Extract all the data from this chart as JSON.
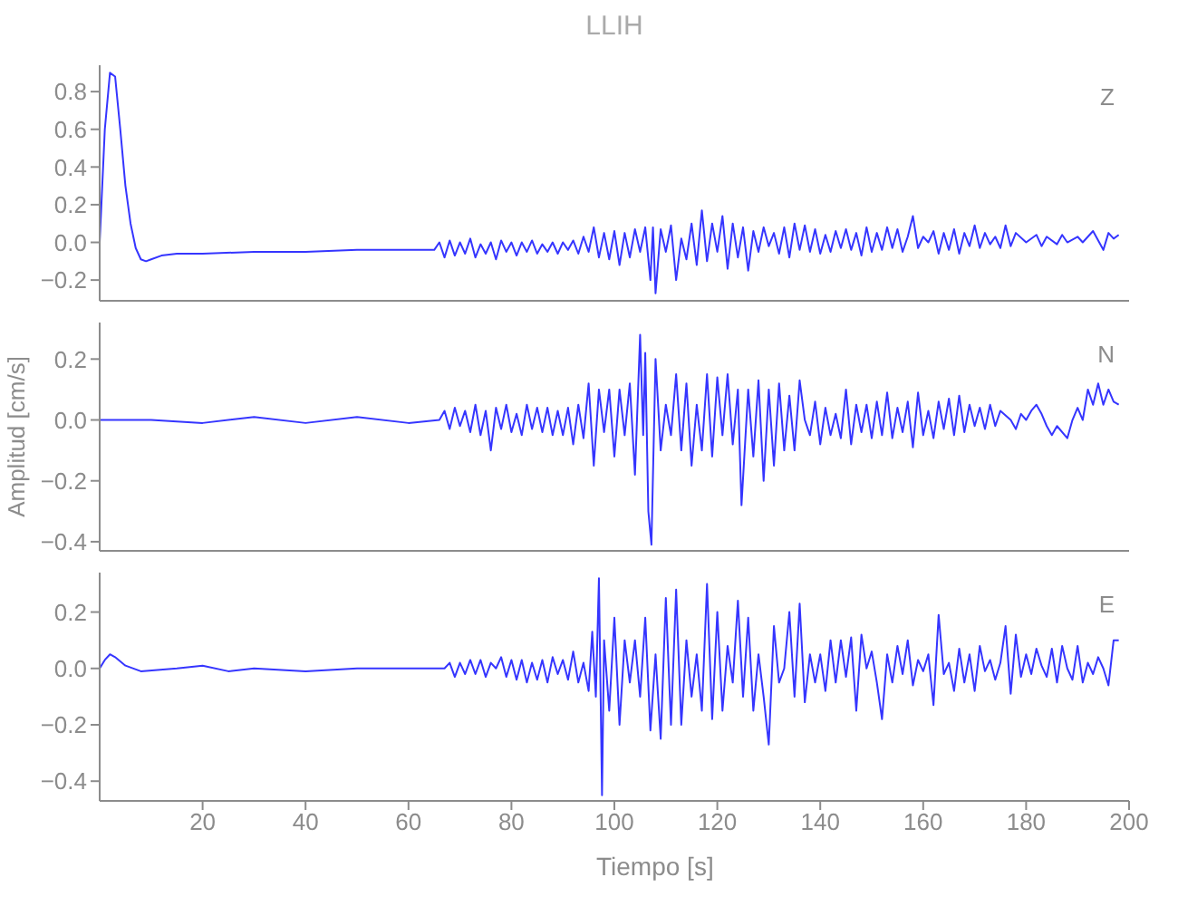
{
  "chart_data": [
    {
      "type": "line",
      "title": "LLIH",
      "annotations": [
        "Z"
      ],
      "xlim": [
        0,
        200
      ],
      "ylim": [
        -0.31,
        0.94
      ],
      "tick_labels": "y",
      "xticks": [
        20,
        40,
        60,
        80,
        100,
        120,
        140,
        160,
        180,
        200
      ],
      "yticks": [
        {
          "value": -0.2,
          "label": "−0.2"
        },
        {
          "value": 0,
          "label": "0.0"
        },
        0.2,
        0.4,
        0.6,
        0.8
      ],
      "x": [
        0,
        1,
        2,
        3,
        4,
        5,
        6,
        7,
        8,
        9,
        10,
        12,
        15,
        20,
        30,
        40,
        50,
        60,
        65,
        66,
        67,
        68,
        69,
        70,
        71,
        72,
        73,
        74,
        75,
        76,
        77,
        78,
        79,
        80,
        81,
        82,
        83,
        84,
        85,
        86,
        87,
        88,
        89,
        90,
        91,
        92,
        93,
        94,
        95,
        96,
        97,
        98,
        99,
        100,
        101,
        102,
        103,
        104,
        105,
        106,
        107,
        107.5,
        108,
        109,
        110,
        111,
        112,
        113,
        114,
        115,
        116,
        117,
        118,
        119,
        120,
        121,
        122,
        123,
        124,
        125,
        126,
        127,
        128,
        129,
        130,
        131,
        132,
        133,
        134,
        135,
        136,
        137,
        138,
        139,
        140,
        141,
        142,
        143,
        144,
        145,
        146,
        147,
        148,
        149,
        150,
        151,
        152,
        153,
        154,
        155,
        156,
        157,
        158,
        159,
        160,
        161,
        162,
        163,
        164,
        165,
        166,
        167,
        168,
        169,
        170,
        171,
        172,
        173,
        174,
        175,
        176,
        177,
        178,
        180,
        182,
        183,
        184,
        186,
        187,
        188,
        190,
        191,
        193,
        195,
        196,
        197,
        198
      ],
      "series": [
        {
          "color": "#3535ff",
          "values": [
            0.0,
            0.6,
            0.9,
            0.88,
            0.6,
            0.3,
            0.1,
            -0.03,
            -0.09,
            -0.1,
            -0.09,
            -0.07,
            -0.06,
            -0.06,
            -0.05,
            -0.05,
            -0.04,
            -0.04,
            -0.04,
            0.0,
            -0.08,
            0.01,
            -0.07,
            0.0,
            -0.06,
            0.02,
            -0.08,
            -0.01,
            -0.06,
            0.0,
            -0.09,
            0.01,
            -0.05,
            0.0,
            -0.07,
            0.0,
            -0.05,
            0.01,
            -0.06,
            -0.01,
            -0.05,
            0.0,
            -0.06,
            0.0,
            -0.04,
            0.01,
            -0.06,
            0.03,
            -0.05,
            0.08,
            -0.08,
            0.05,
            -0.09,
            0.06,
            -0.12,
            0.05,
            -0.08,
            0.07,
            -0.05,
            0.08,
            -0.2,
            0.08,
            -0.27,
            0.07,
            -0.05,
            0.09,
            -0.2,
            0.02,
            -0.09,
            0.1,
            -0.12,
            0.17,
            -0.1,
            0.1,
            -0.05,
            0.14,
            -0.14,
            0.1,
            -0.08,
            0.08,
            -0.15,
            0.06,
            -0.05,
            0.08,
            -0.02,
            0.05,
            -0.06,
            0.08,
            -0.08,
            0.1,
            -0.04,
            0.09,
            -0.05,
            0.07,
            -0.06,
            0.04,
            -0.05,
            0.06,
            -0.03,
            0.07,
            -0.04,
            0.05,
            -0.07,
            0.08,
            -0.05,
            0.05,
            -0.04,
            0.08,
            -0.03,
            0.07,
            -0.05,
            0.03,
            0.14,
            -0.03,
            0.03,
            0.0,
            0.06,
            -0.06,
            0.05,
            -0.04,
            0.07,
            -0.06,
            0.05,
            -0.02,
            0.09,
            -0.03,
            0.05,
            -0.01,
            0.03,
            -0.03,
            0.09,
            -0.02,
            0.05,
            0.0,
            0.04,
            -0.02,
            0.03,
            -0.01,
            0.04,
            0.0,
            0.03,
            0.0,
            0.06,
            -0.04,
            0.05,
            0.02,
            0.04
          ]
        }
      ]
    },
    {
      "type": "line",
      "ylabel": "Amplitud  [cm/s]",
      "annotations": [
        "N"
      ],
      "xlim": [
        0,
        200
      ],
      "ylim": [
        -0.43,
        0.32
      ],
      "tick_labels": "y",
      "xticks": [
        20,
        40,
        60,
        80,
        100,
        120,
        140,
        160,
        180,
        200
      ],
      "yticks": [
        {
          "value": -0.4,
          "label": "−0.4"
        },
        {
          "value": -0.2,
          "label": "−0.2"
        },
        {
          "value": 0,
          "label": "0.0"
        },
        0.2
      ],
      "x": [
        0,
        10,
        20,
        30,
        40,
        50,
        60,
        66,
        67,
        68,
        69,
        70,
        71,
        72,
        73,
        74,
        75,
        76,
        77,
        78,
        79,
        80,
        81,
        82,
        83,
        84,
        85,
        86,
        87,
        88,
        89,
        90,
        91,
        92,
        93,
        94,
        95,
        96,
        97,
        98,
        99,
        100,
        101,
        102,
        103,
        104,
        105,
        105.6,
        106,
        106.6,
        107.2,
        108,
        109,
        110,
        111,
        112,
        113,
        114,
        115,
        116,
        117,
        118,
        119,
        120,
        121,
        122,
        123,
        124,
        124.7,
        126,
        127,
        128,
        129,
        130,
        131,
        132,
        133,
        134,
        135,
        136,
        137,
        138,
        139,
        140,
        141,
        142,
        143,
        144,
        145,
        146,
        147,
        148,
        149,
        150,
        151,
        152,
        153,
        154,
        155,
        156,
        157,
        158,
        159,
        160,
        161,
        162,
        163,
        164,
        165,
        166,
        167,
        168,
        169,
        170,
        171,
        172,
        173,
        174,
        175,
        177,
        178,
        179,
        180,
        181,
        182,
        183,
        184,
        185,
        186,
        188,
        189,
        190,
        191,
        192,
        193,
        194,
        195,
        196,
        197,
        198
      ],
      "series": [
        {
          "color": "#3535ff",
          "values": [
            0.0,
            0.0,
            -0.01,
            0.01,
            -0.01,
            0.01,
            -0.01,
            0.0,
            0.03,
            -0.03,
            0.04,
            -0.02,
            0.03,
            -0.04,
            0.05,
            -0.05,
            0.03,
            -0.1,
            0.04,
            -0.03,
            0.05,
            -0.04,
            0.02,
            -0.05,
            0.05,
            -0.03,
            0.04,
            -0.04,
            0.04,
            -0.05,
            0.03,
            -0.05,
            0.04,
            -0.08,
            0.05,
            -0.06,
            0.12,
            -0.15,
            0.1,
            -0.04,
            0.1,
            -0.12,
            0.1,
            -0.05,
            0.12,
            -0.18,
            0.28,
            -0.05,
            0.22,
            -0.3,
            -0.41,
            0.2,
            -0.1,
            0.05,
            -0.05,
            0.15,
            -0.1,
            0.12,
            -0.15,
            0.05,
            -0.1,
            0.15,
            -0.12,
            0.14,
            -0.05,
            0.15,
            -0.08,
            0.1,
            -0.28,
            0.1,
            -0.12,
            0.13,
            -0.2,
            0.1,
            -0.15,
            0.12,
            -0.1,
            0.08,
            -0.1,
            0.13,
            0.0,
            -0.05,
            0.06,
            -0.08,
            0.04,
            -0.05,
            0.02,
            -0.06,
            0.1,
            -0.08,
            0.05,
            -0.04,
            0.05,
            -0.06,
            0.06,
            -0.05,
            0.09,
            -0.06,
            0.04,
            -0.04,
            0.06,
            -0.09,
            0.09,
            -0.05,
            0.03,
            -0.06,
            0.06,
            -0.03,
            0.07,
            -0.05,
            0.08,
            -0.04,
            0.05,
            -0.02,
            0.04,
            -0.03,
            0.05,
            -0.02,
            0.03,
            0.0,
            -0.03,
            0.02,
            0.0,
            0.03,
            0.05,
            0.02,
            -0.02,
            -0.05,
            -0.02,
            -0.06,
            0.0,
            0.04,
            0.0,
            0.1,
            0.05,
            0.12,
            0.05,
            0.1,
            0.06,
            0.05
          ]
        }
      ]
    },
    {
      "type": "line",
      "xlabel": "Tiempo  [s]",
      "annotations": [
        "E"
      ],
      "xlim": [
        0,
        200
      ],
      "ylim": [
        -0.47,
        0.34
      ],
      "xticks": [
        20,
        40,
        60,
        80,
        100,
        120,
        140,
        160,
        180,
        200
      ],
      "yticks": [
        {
          "value": -0.4,
          "label": "−0.4"
        },
        {
          "value": -0.2,
          "label": "−0.2"
        },
        {
          "value": 0,
          "label": "0.0"
        },
        0.2
      ],
      "x": [
        0,
        1,
        2,
        3,
        5,
        8,
        15,
        20,
        25,
        30,
        40,
        50,
        60,
        67,
        68,
        69,
        70,
        71,
        72,
        73,
        74,
        75,
        76,
        77,
        78,
        79,
        80,
        81,
        82,
        83,
        84,
        85,
        86,
        87,
        88,
        89,
        90,
        91,
        92,
        93,
        94,
        95,
        95.7,
        96.4,
        97,
        97.6,
        98,
        99,
        100,
        101,
        102,
        103,
        104,
        105,
        106,
        107,
        108,
        109,
        110,
        111,
        112,
        113,
        114,
        115,
        116,
        117,
        118,
        119,
        120,
        121,
        122,
        123,
        124,
        125,
        126,
        127,
        128,
        129,
        130,
        131,
        132,
        133,
        134,
        135,
        136,
        137,
        138,
        139,
        140,
        141,
        142,
        143,
        144,
        145,
        146,
        147,
        148,
        149,
        150,
        151,
        152,
        153,
        154,
        155,
        156,
        157,
        158,
        159,
        160,
        161,
        162,
        163,
        164,
        165,
        166,
        167,
        168,
        169,
        170,
        171,
        172,
        173,
        174,
        175,
        176,
        177,
        178,
        179,
        180,
        181,
        182,
        183,
        184,
        185,
        186,
        187,
        188,
        189,
        190,
        191,
        192,
        193,
        194,
        195,
        196,
        197,
        198
      ],
      "series": [
        {
          "color": "#3535ff",
          "values": [
            0.0,
            0.03,
            0.05,
            0.04,
            0.01,
            -0.01,
            0.0,
            0.01,
            -0.01,
            0.0,
            -0.01,
            0.0,
            0.0,
            0.0,
            0.02,
            -0.03,
            0.02,
            -0.02,
            0.03,
            -0.02,
            0.03,
            -0.03,
            0.02,
            0.0,
            0.04,
            -0.03,
            0.03,
            -0.04,
            0.03,
            -0.05,
            0.02,
            -0.04,
            0.03,
            -0.05,
            0.04,
            -0.02,
            0.03,
            -0.04,
            0.06,
            -0.05,
            0.02,
            -0.08,
            0.13,
            -0.1,
            0.32,
            -0.45,
            0.1,
            -0.15,
            0.18,
            -0.2,
            0.1,
            -0.05,
            0.1,
            -0.1,
            0.18,
            -0.22,
            0.05,
            -0.25,
            0.25,
            -0.2,
            0.28,
            -0.2,
            0.1,
            -0.1,
            0.05,
            -0.15,
            0.3,
            -0.18,
            0.2,
            -0.15,
            0.08,
            -0.05,
            0.24,
            -0.1,
            0.18,
            -0.15,
            0.05,
            -0.1,
            -0.27,
            0.15,
            -0.05,
            0.0,
            0.2,
            -0.1,
            0.23,
            -0.12,
            0.05,
            -0.05,
            0.05,
            -0.08,
            0.1,
            -0.05,
            0.1,
            -0.03,
            0.11,
            -0.15,
            0.12,
            0.0,
            0.06,
            -0.05,
            -0.18,
            0.05,
            -0.05,
            0.08,
            -0.02,
            0.1,
            -0.06,
            0.03,
            -0.01,
            0.05,
            -0.13,
            0.19,
            -0.02,
            0.02,
            -0.08,
            0.07,
            -0.05,
            0.05,
            -0.08,
            0.08,
            -0.01,
            0.03,
            -0.04,
            0.02,
            0.15,
            -0.09,
            0.12,
            -0.03,
            0.05,
            -0.02,
            0.07,
            0.01,
            -0.03,
            0.07,
            -0.05,
            0.08,
            0.0,
            -0.04,
            0.08,
            -0.05,
            0.02,
            -0.02,
            0.04,
            0.0,
            -0.06,
            0.1,
            0.1
          ]
        }
      ]
    }
  ]
}
